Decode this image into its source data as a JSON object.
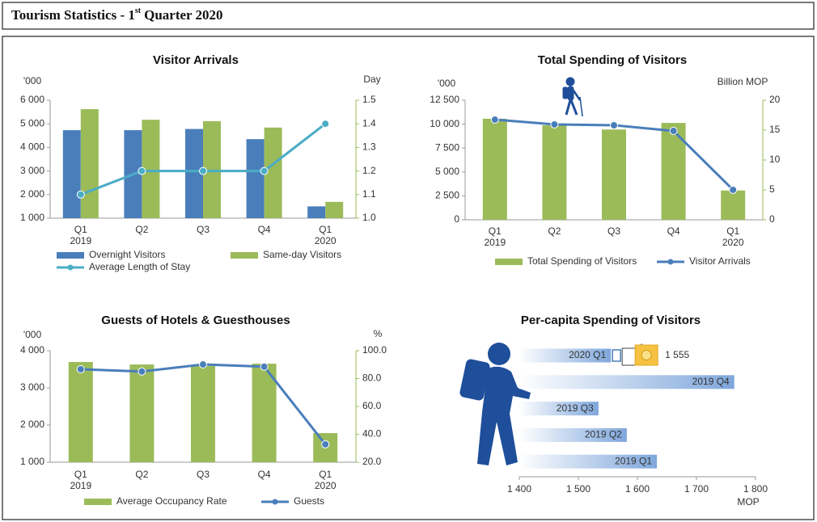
{
  "header": {
    "title": "Tourism Statistics - 1",
    "title_sup": "st",
    "title_rest": "Quarter 2020"
  },
  "chart_data": [
    {
      "type": "combo",
      "title": "Visitor Arrivals",
      "y_label": "'000",
      "y2_label": "Day",
      "categories": [
        [
          "Q1",
          "2019"
        ],
        [
          "Q2"
        ],
        [
          "Q3"
        ],
        [
          "Q4"
        ],
        [
          "Q1",
          "2020"
        ]
      ],
      "ylim": [
        1000,
        6000
      ],
      "yticks": [
        {
          "value": 1000,
          "label": "1 000"
        },
        {
          "value": 2000,
          "label": "2 000"
        },
        {
          "value": 3000,
          "label": "3 000"
        },
        {
          "value": 4000,
          "label": "4 000"
        },
        {
          "value": 5000,
          "label": "5 000"
        },
        {
          "value": 6000,
          "label": "6 000"
        }
      ],
      "y2lim": [
        1,
        1.5
      ],
      "y2ticks": [
        {
          "value": 1,
          "label": "1.0"
        },
        1.1,
        1.2,
        1.3,
        1.4,
        1.5
      ],
      "series": [
        {
          "name": "Overnight Visitors",
          "color": "#4a7ebb",
          "kind": "bar",
          "values": [
            4730,
            4730,
            4780,
            4350,
            1500
          ]
        },
        {
          "name": "Same-day Visitors",
          "color": "#9bbb59",
          "kind": "bar",
          "values": [
            5620,
            5170,
            5110,
            4840,
            1690
          ]
        },
        {
          "name": "Average Length of Stay",
          "color": "#4bacc6",
          "kind": "line",
          "axis": "y2",
          "values": [
            1.1,
            1.2,
            1.2,
            1.2,
            1.4
          ]
        }
      ]
    },
    {
      "type": "combo",
      "title": "Total Spending of Visitors",
      "y_label": "'000",
      "y2_label": "Billion MOP",
      "categories": [
        [
          "Q1",
          "2019"
        ],
        [
          "Q2"
        ],
        [
          "Q3"
        ],
        [
          "Q4"
        ],
        [
          "Q1",
          "2020"
        ]
      ],
      "ylim": [
        0,
        12500
      ],
      "yticks": [
        0,
        {
          "value": 2500,
          "label": "2 500"
        },
        {
          "value": 5000,
          "label": "5 000"
        },
        {
          "value": 7500,
          "label": "7 500"
        },
        {
          "value": 10000,
          "label": "10 000"
        },
        {
          "value": 12500,
          "label": "12 500"
        }
      ],
      "y2lim": [
        0,
        20
      ],
      "y2ticks": [
        0,
        5,
        10,
        15,
        20
      ],
      "series": [
        {
          "name": "Total Spending of Visitors",
          "color": "#9bbb59",
          "kind": "bar",
          "axis": "y2",
          "values": [
            16.9,
            15.8,
            15.1,
            16.2,
            4.9
          ]
        },
        {
          "name": "Visitor Arrivals",
          "color": "#4a7ebb",
          "kind": "line",
          "values": [
            10470,
            9970,
            9880,
            9290,
            3130
          ]
        }
      ]
    },
    {
      "type": "combo",
      "title": "Guests of Hotels & Guesthouses",
      "y_label": "'000",
      "y2_label": "%",
      "categories": [
        [
          "Q1",
          "2019"
        ],
        [
          "Q2"
        ],
        [
          "Q3"
        ],
        [
          "Q4"
        ],
        [
          "Q1",
          "2020"
        ]
      ],
      "ylim": [
        1000,
        4000
      ],
      "yticks": [
        {
          "value": 1000,
          "label": "1 000"
        },
        {
          "value": 2000,
          "label": "2 000"
        },
        {
          "value": 3000,
          "label": "3 000"
        },
        {
          "value": 4000,
          "label": "4 000"
        }
      ],
      "y2lim": [
        20,
        100
      ],
      "y2ticks": [
        {
          "value": 20,
          "label": "20.0"
        },
        {
          "value": 40,
          "label": "40.0"
        },
        {
          "value": 60,
          "label": "60.0"
        },
        {
          "value": 80,
          "label": "80.0"
        },
        {
          "value": 100,
          "label": "100.0"
        }
      ],
      "series": [
        {
          "name": "Average Occupancy Rate",
          "color": "#9bbb59",
          "kind": "bar",
          "axis": "y2",
          "values": [
            91.9,
            90.1,
            89.0,
            90.7,
            40.9
          ]
        },
        {
          "name": "Guests",
          "color": "#4a7ebb",
          "kind": "line",
          "values": [
            3500,
            3440,
            3630,
            3570,
            1480
          ]
        }
      ]
    },
    {
      "type": "hbar",
      "title": "Per-capita Spending of Visitors",
      "x_label": "MOP",
      "categories": [
        "2020 Q1",
        "2019 Q4",
        "2019 Q3",
        "2019 Q2",
        "2019 Q1"
      ],
      "values": [
        1555,
        1764,
        1534,
        1582,
        1633
      ],
      "value_labels": [
        "1 555",
        null,
        null,
        null,
        null
      ],
      "color": "#4a7ebb",
      "xlim": [
        1400,
        1800
      ],
      "xticks": [
        {
          "value": 1400,
          "label": "1 400"
        },
        {
          "value": 1500,
          "label": "1 500"
        },
        {
          "value": 1600,
          "label": "1 600"
        },
        {
          "value": 1700,
          "label": "1 700"
        },
        {
          "value": 1800,
          "label": "1 800"
        }
      ]
    }
  ]
}
